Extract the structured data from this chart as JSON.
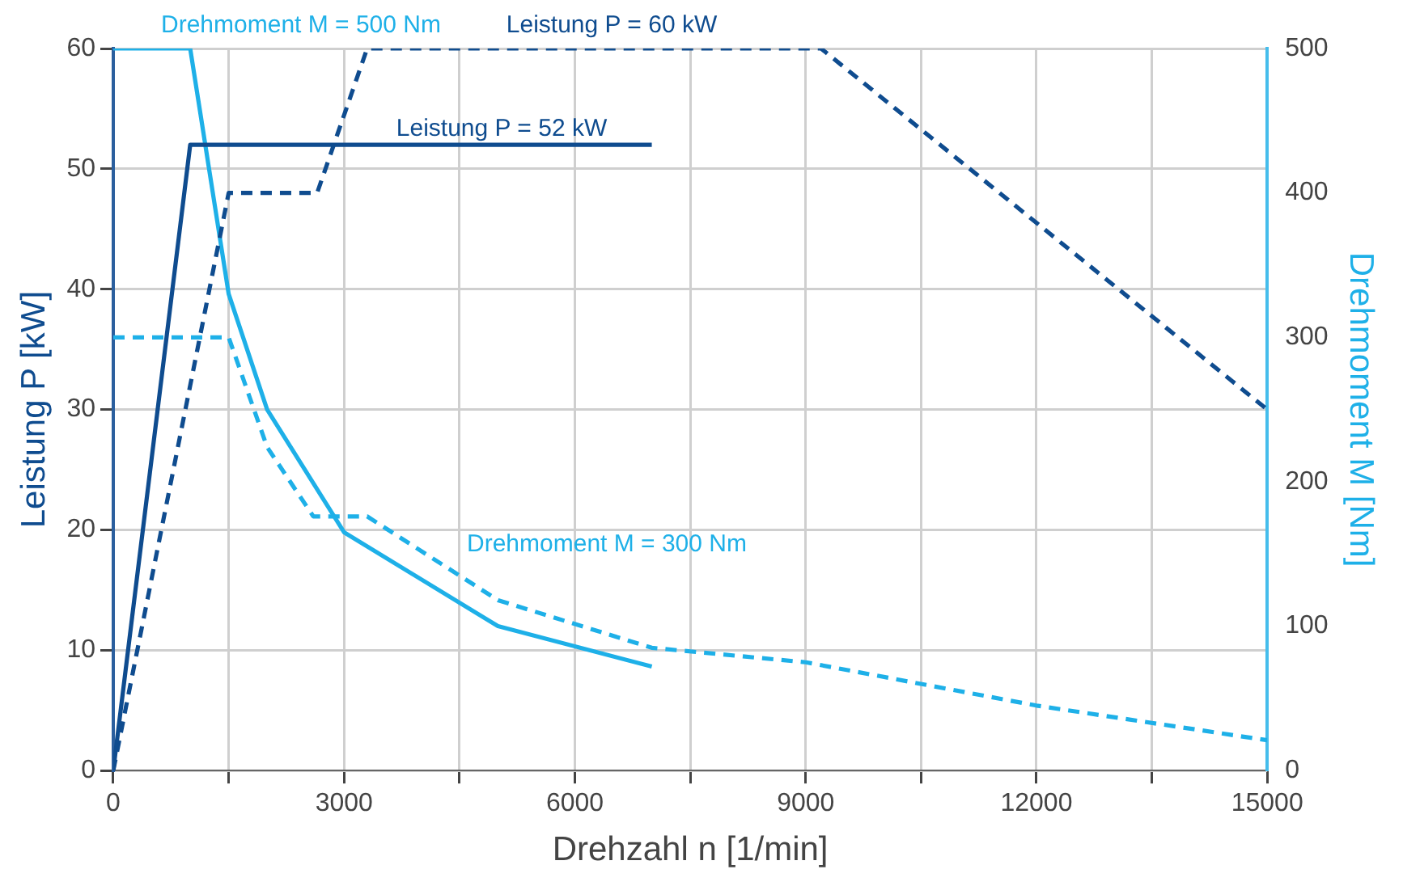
{
  "chart_data": {
    "type": "line",
    "xlabel": "Drehzahl n [1/min]",
    "ylabel": "Leistung P [kW]",
    "y2label": "Drehmoment M [Nm]",
    "xlim": [
      0,
      15000
    ],
    "xticks": [
      0,
      {
        "value": 1500,
        "label": null
      },
      3000,
      {
        "value": 4500,
        "label": null
      },
      6000,
      {
        "value": 7500,
        "label": null
      },
      9000,
      {
        "value": 10500,
        "label": null
      },
      12000,
      {
        "value": 13500,
        "label": null
      },
      15000
    ],
    "ylim": [
      0,
      60
    ],
    "yticks": [
      0,
      10,
      20,
      30,
      40,
      50,
      60
    ],
    "y2lim": [
      0,
      500
    ],
    "y2ticks": [
      0,
      100,
      200,
      300,
      400,
      500
    ],
    "grid": true,
    "legend": false,
    "marker": "none",
    "series": [
      {
        "name": "Leistung P = 52 kW",
        "color": "#0f4c8f",
        "line_style": "solid",
        "x": [
          0,
          1000,
          7000
        ],
        "values": [
          0,
          52,
          52
        ]
      },
      {
        "name": "Leistung P = 60 kW",
        "color": "#0f4c8f",
        "line_style": "dashed",
        "x": [
          0,
          1500,
          2650,
          3300,
          9200,
          15000
        ],
        "values": [
          0,
          48,
          48,
          60,
          60,
          30
        ]
      },
      {
        "name": "Drehmoment M = 500 Nm",
        "color": "#1eb0e8",
        "line_style": "solid",
        "axis": "y2",
        "x": [
          0,
          1000,
          1500,
          2000,
          3000,
          5000,
          7000
        ],
        "values": [
          500,
          500,
          330,
          250,
          165,
          100,
          72
        ]
      },
      {
        "name": "Drehmoment M = 300 Nm",
        "color": "#1eb0e8",
        "line_style": "dashed",
        "axis": "y2",
        "x": [
          0,
          1500,
          2000,
          2600,
          3300,
          5000,
          7000,
          9000,
          12000,
          15000
        ],
        "values": [
          300,
          300,
          224,
          176,
          176,
          118,
          85,
          75,
          45,
          21
        ]
      }
    ]
  }
}
